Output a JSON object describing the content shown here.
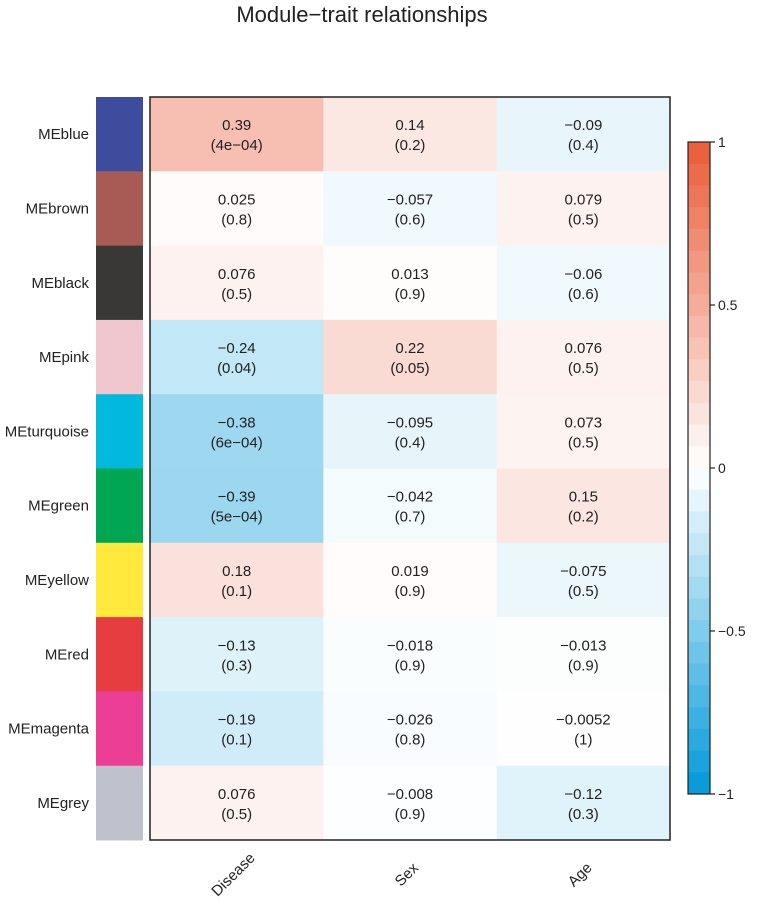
{
  "chart_data": {
    "type": "heatmap",
    "title": "Module−trait relationships",
    "rows": [
      {
        "label": "MEblue",
        "color": "#3e4c9e",
        "r": [
          "0.39",
          "0.14",
          "−0.09"
        ],
        "p": [
          "(4e−04)",
          "(0.2)",
          "(0.4)"
        ]
      },
      {
        "label": "MEbrown",
        "color": "#a85a55",
        "r": [
          "0.025",
          "−0.057",
          "0.079"
        ],
        "p": [
          "(0.8)",
          "(0.6)",
          "(0.5)"
        ]
      },
      {
        "label": "MEblack",
        "color": "#3a3737",
        "r": [
          "0.076",
          "0.013",
          "−0.06"
        ],
        "p": [
          "(0.5)",
          "(0.9)",
          "(0.6)"
        ]
      },
      {
        "label": "MEpink",
        "color": "#f1c7cf",
        "r": [
          "−0.24",
          "0.22",
          "0.076"
        ],
        "p": [
          "(0.04)",
          "(0.05)",
          "(0.5)"
        ]
      },
      {
        "label": "MEturquoise",
        "color": "#00b9dc",
        "r": [
          "−0.38",
          "−0.095",
          "0.073"
        ],
        "p": [
          "(6e−04)",
          "(0.4)",
          "(0.5)"
        ]
      },
      {
        "label": "MEgreen",
        "color": "#00a651",
        "r": [
          "−0.39",
          "−0.042",
          "0.15"
        ],
        "p": [
          "(5e−04)",
          "(0.7)",
          "(0.2)"
        ]
      },
      {
        "label": "MEyellow",
        "color": "#ffe93d",
        "r": [
          "0.18",
          "0.019",
          "−0.075"
        ],
        "p": [
          "(0.1)",
          "(0.9)",
          "(0.5)"
        ]
      },
      {
        "label": "MEred",
        "color": "#e63e40",
        "r": [
          "−0.13",
          "−0.018",
          "−0.013"
        ],
        "p": [
          "(0.3)",
          "(0.9)",
          "(0.9)"
        ]
      },
      {
        "label": "MEmagenta",
        "color": "#ec3d94",
        "r": [
          "−0.19",
          "−0.026",
          "−0.0052"
        ],
        "p": [
          "(0.1)",
          "(0.8)",
          "(1)"
        ]
      },
      {
        "label": "MEgrey",
        "color": "#bfc2cc",
        "r": [
          "0.076",
          "−0.008",
          "−0.12"
        ],
        "p": [
          "(0.5)",
          "(0.9)",
          "(0.3)"
        ]
      }
    ],
    "columns": [
      "Disease",
      "Sex",
      "Age"
    ],
    "color_scale": {
      "range": [
        -1,
        1
      ],
      "low_color": "#0099d8",
      "mid_color": "#ffffff",
      "high_color": "#ea5a36",
      "ticks": [
        "1",
        "0.5",
        "0",
        "−0.5",
        "−1"
      ]
    }
  }
}
